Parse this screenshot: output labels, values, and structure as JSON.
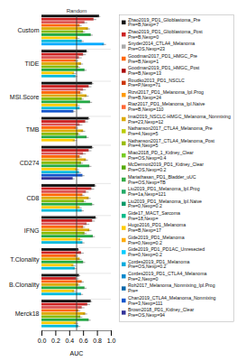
{
  "chart_data": {
    "type": "bar",
    "orientation": "horizontal",
    "xlabel": "AUC",
    "xlim": [
      0,
      1.0
    ],
    "xticks": [
      {
        "value": 0,
        "label": "0.0"
      },
      0.2,
      0.4,
      0.6,
      0.8,
      {
        "value": 1.0,
        "label": "1.0"
      }
    ],
    "grid": false,
    "groups": [
      {
        "name": "Custom",
        "values": [
          0.83,
          0.75,
          0.62,
          0.55,
          0.67,
          0.6,
          0.71,
          0.52,
          0.58,
          0.9
        ],
        "colors": [
          "#111111",
          "#cc2222",
          "#dd5555",
          "#ff6600",
          "#ddaa00",
          "#88bb00",
          "#22aa44",
          "#ffcc00",
          "#00bbdd",
          "#00aaff"
        ],
        "errors": [
          0.02,
          0.04,
          0.04,
          0.03,
          0.03,
          0.03,
          0.03,
          0.03,
          0.03,
          0.03
        ]
      },
      {
        "name": "TIDE",
        "values": [
          0.65,
          0.6,
          0.54,
          0.5,
          0.57,
          0.53,
          0.62,
          0.47,
          0.49
        ],
        "colors": [
          "#111111",
          "#cc2222",
          "#dd5555",
          "#ff6600",
          "#ddaa00",
          "#88bb00",
          "#22aa44",
          "#ffcc00",
          "#00bbdd"
        ],
        "errors": [
          0.02,
          0.04,
          0.04,
          0.03,
          0.03,
          0.03,
          0.03,
          0.03,
          0.03
        ]
      },
      {
        "name": "MSI.Score",
        "values": [
          0.73,
          0.68,
          0.6,
          0.56,
          0.65,
          0.58,
          0.7,
          0.52,
          0.55,
          0.46
        ],
        "colors": [
          "#111111",
          "#cc2222",
          "#dd5555",
          "#ff6600",
          "#ddaa00",
          "#88bb00",
          "#22aa44",
          "#ffcc00",
          "#00bbdd",
          "#1155cc"
        ],
        "errors": [
          0.02,
          0.04,
          0.04,
          0.03,
          0.03,
          0.03,
          0.03,
          0.03,
          0.03,
          0.03
        ]
      },
      {
        "name": "TMB",
        "values": [
          0.68,
          0.63,
          0.55,
          0.5,
          0.6,
          0.53,
          0.65,
          0.48
        ],
        "colors": [
          "#111111",
          "#cc2222",
          "#dd5555",
          "#ff6600",
          "#ddaa00",
          "#88bb00",
          "#22aa44",
          "#ffcc00"
        ],
        "errors": [
          0.02,
          0.04,
          0.04,
          0.03,
          0.03,
          0.03,
          0.03,
          0.03
        ]
      },
      {
        "name": "CD274",
        "values": [
          0.73,
          0.68,
          0.6,
          0.55,
          0.64,
          0.57,
          0.69,
          0.51,
          0.54,
          0.59,
          0.45
        ],
        "colors": [
          "#111111",
          "#cc2222",
          "#dd5555",
          "#ff6600",
          "#ddaa00",
          "#88bb00",
          "#22aa44",
          "#ffcc00",
          "#00bbdd",
          "#1155cc",
          "#333399"
        ],
        "errors": [
          0.02,
          0.04,
          0.04,
          0.03,
          0.03,
          0.03,
          0.03,
          0.03,
          0.03,
          0.03,
          0.03
        ]
      },
      {
        "name": "CD8",
        "values": [
          0.77,
          0.72,
          0.64,
          0.59,
          0.68,
          0.61,
          0.73,
          0.55,
          0.58
        ],
        "colors": [
          "#111111",
          "#cc2222",
          "#dd5555",
          "#ff6600",
          "#ddaa00",
          "#88bb00",
          "#22aa44",
          "#ffcc00",
          "#00bbdd"
        ],
        "errors": [
          0.02,
          0.04,
          0.04,
          0.03,
          0.03,
          0.03,
          0.03,
          0.03,
          0.03
        ]
      },
      {
        "name": "IFNG",
        "values": [
          0.78,
          0.73,
          0.65,
          0.6,
          0.69,
          0.62,
          0.74,
          0.56,
          0.59
        ],
        "colors": [
          "#111111",
          "#cc2222",
          "#dd5555",
          "#ff6600",
          "#ddaa00",
          "#88bb00",
          "#22aa44",
          "#ffcc00",
          "#00bbdd"
        ],
        "errors": [
          0.02,
          0.04,
          0.04,
          0.03,
          0.03,
          0.03,
          0.03,
          0.03,
          0.03
        ]
      },
      {
        "name": "T.Clonality",
        "values": [
          0.53,
          0.57,
          0.5,
          0.55,
          0.6,
          0.46,
          0.48
        ],
        "colors": [
          "#111111",
          "#cc2222",
          "#ff6600",
          "#ddaa00",
          "#22aa44",
          "#ffcc00",
          "#00bbdd"
        ],
        "errors": [
          0.02,
          0.04,
          0.03,
          0.03,
          0.03,
          0.03,
          0.03
        ]
      },
      {
        "name": "B.Clonality",
        "values": [
          0.54,
          0.5,
          0.58,
          0.53,
          0.62,
          0.47,
          0.57
        ],
        "colors": [
          "#111111",
          "#cc2222",
          "#ff6600",
          "#ddaa00",
          "#22aa44",
          "#ffcc00",
          "#00bbdd"
        ],
        "errors": [
          0.02,
          0.04,
          0.03,
          0.03,
          0.03,
          0.03,
          0.03
        ]
      },
      {
        "name": "Merck18",
        "values": [
          0.71,
          0.66,
          0.58,
          0.53,
          0.63,
          0.56,
          0.68,
          0.5,
          0.53
        ],
        "colors": [
          "#111111",
          "#cc2222",
          "#dd5555",
          "#ff6600",
          "#ddaa00",
          "#88bb00",
          "#22aa44",
          "#ffcc00",
          "#00bbdd"
        ],
        "errors": [
          0.02,
          0.04,
          0.04,
          0.03,
          0.03,
          0.03,
          0.03,
          0.03,
          0.03
        ]
      }
    ],
    "annotations": [
      {
        "text": "Random",
        "x": 0.5
      }
    ],
    "legend": "right",
    "legend_entries": [
      {
        "label": "Zhao2019_PD1_Glioblastoma_Pre\nPre=B,Nexp=7",
        "color": "#111111",
        "marker": "square"
      },
      {
        "label": "Zhao2019_PD1_Glioblastoma_Post\nPre=B,Nexp=0",
        "color": "#cc2222",
        "marker": "square"
      },
      {
        "label": "Snyder2014_CTLA4_Melanoma\nPre=OS,Nexp=23",
        "color": "#aaaaaa",
        "marker": "square"
      },
      {
        "label": "Goodman2017_PD1_HMGC_Pre\nPre=B,Nexp=1",
        "color": "#ff6600",
        "marker": "square"
      },
      {
        "label": "Goodman2019_PD1_HMGC_Post\nPre=B,Nexp=13",
        "color": "#aa0000",
        "marker": "square"
      },
      {
        "label": "Roudko2013_PD1_NSCLC\nPre=P,Nexp=71",
        "color": "#cc3300",
        "marker": "square"
      },
      {
        "label": "Rizvi2017_PD1_Melanoma_IpI.Prog\nPre=B,Nexp=24",
        "color": "#ff9900",
        "marker": "square"
      },
      {
        "label": "Riaz2017_PD1_Melanoma_IpI.Naive\nPre=B,Nexp=110",
        "color": "#ff6633",
        "marker": "square"
      },
      {
        "label": "Imai2019_NSCLC-HMGC_Melanoma_Nonmixing\nPre=23,Nexp=12",
        "color": "#ddaa00",
        "marker": "square"
      },
      {
        "label": "Nathanson2017_CTLA4_Melanoma_Pre\nPre=4,Nexp=5",
        "color": "#bbcc00",
        "marker": "square"
      },
      {
        "label": "Nathanson2017_CTLA4_Melanoma_Post\nPre=4,Nexp=5",
        "color": "#99bb00",
        "marker": "square"
      },
      {
        "label": "Miao2018_PD_1_Kidney_Clear\nPre=OS,Nexp=0.4",
        "color": "#77cc22",
        "marker": "square"
      },
      {
        "label": "McDermott2019_PD1_Kidney_Clear\nPre=OS,Nexp=0.2",
        "color": "#55aa00",
        "marker": "square"
      },
      {
        "label": "Mariathasan_PD1_Bladder_uUC\nPre=OS,Nexp=TB",
        "color": "#33aa44",
        "marker": "square"
      },
      {
        "label": "Liu2019_PD1_Melanoma_IpI.Prog\nPre=1a,Nexp=121",
        "color": "#22aa66",
        "marker": "square"
      },
      {
        "label": "Liu2019_PD1_Melanoma_IpI.Naive\nPre=0,Nexp=0.2",
        "color": "#009966",
        "marker": "square"
      },
      {
        "label": "Gide17_MACT_Sarcoma\nPre=18,Nexp=",
        "color": "#00bb88",
        "marker": "square"
      },
      {
        "label": "Hugo2016_PD1_Melanoma\nPre=B,Nexp=17",
        "color": "#ffcc00",
        "marker": "square"
      },
      {
        "label": "Gide2019_PD1_Melanoma\nPre=0,Nexp=0.2",
        "color": "#ffaa00",
        "marker": "square"
      },
      {
        "label": "Gide2019_PD1_PD1AC_Unresected\nPre=0,Nexp=0.2",
        "color": "#00ccff",
        "marker": "square"
      },
      {
        "label": "Cordes2019_PD1_Melanoma\nPre=OS,Nexp=0.2",
        "color": "#00aadd",
        "marker": "square"
      },
      {
        "label": "Cordes2019_PD1_CTLA4_Melanoma\nPre=2,Nexp=0",
        "color": "#0088cc",
        "marker": "square"
      },
      {
        "label": "Roh2017_Melanoma_Nonmixing_IpI.Prog\nPre=",
        "color": "#0066aa",
        "marker": "square"
      },
      {
        "label": "Chan2019_CTLA4_Melanoma_Nonmixing\nPre=3,Nexp=111",
        "color": "#1155cc",
        "marker": "square"
      },
      {
        "label": "Brown2018_PD1_Kidney_Clear\nPre=OS,Nexp=94",
        "color": "#333399",
        "marker": "square"
      }
    ]
  }
}
